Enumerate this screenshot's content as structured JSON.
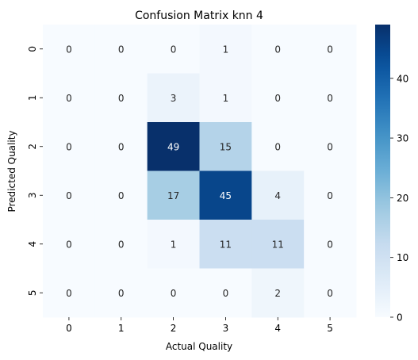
{
  "chart_data": {
    "type": "heatmap",
    "title": "Confusion Matrix knn 4",
    "xlabel": "Actual Quality",
    "ylabel": "Predicted Quality",
    "x_categories": [
      "0",
      "1",
      "2",
      "3",
      "4",
      "5"
    ],
    "y_categories": [
      "0",
      "1",
      "2",
      "3",
      "4",
      "5"
    ],
    "values": [
      [
        0,
        0,
        0,
        1,
        0,
        0
      ],
      [
        0,
        0,
        3,
        1,
        0,
        0
      ],
      [
        0,
        0,
        49,
        15,
        0,
        0
      ],
      [
        0,
        0,
        17,
        45,
        4,
        0
      ],
      [
        0,
        0,
        1,
        11,
        11,
        0
      ],
      [
        0,
        0,
        0,
        0,
        2,
        0
      ]
    ],
    "colormap": "Blues",
    "vmin": 0,
    "vmax": 49,
    "colorbar_ticks": [
      0,
      10,
      20,
      30,
      40
    ],
    "annot_dark_color": "#262626",
    "annot_light_color": "#ffffff"
  }
}
